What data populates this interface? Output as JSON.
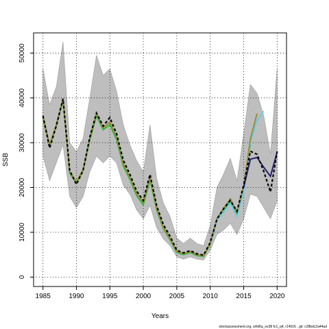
{
  "chart_data": {
    "type": "line",
    "xlabel": "Years",
    "ylabel": "SSB",
    "xlim": [
      1983.6,
      2021.4
    ],
    "ylim": [
      -2100,
      54500
    ],
    "xticks": [
      1985,
      1990,
      1995,
      2000,
      2005,
      2010,
      2015,
      2020
    ],
    "yticks": [
      0,
      10000,
      20000,
      30000,
      40000,
      50000
    ],
    "grid": true,
    "footnote": "stockassessment.org, whit6a_ov38 fc1_q4, r14016 , git: c28bdc2a44ad",
    "colors": {
      "band": "#bebebe",
      "band_edge": "#9a9a9a",
      "main": "#000000",
      "olive": "#9a8c3a",
      "green": "#2db83d",
      "cyan": "#6ccbe8",
      "navy": "#25206e",
      "grid": "#000000"
    },
    "band": {
      "x": [
        1985,
        1986,
        1987,
        1988,
        1989,
        1990,
        1991,
        1992,
        1993,
        1994,
        1995,
        1996,
        1997,
        1998,
        1999,
        2000,
        2001,
        2002,
        2003,
        2004,
        2005,
        2006,
        2007,
        2008,
        2009,
        2010,
        2011,
        2012,
        2013,
        2014,
        2015,
        2016,
        2017,
        2018,
        2019,
        2020
      ],
      "upper": [
        46500,
        38500,
        42500,
        52500,
        30000,
        28000,
        31000,
        40000,
        49500,
        45000,
        46500,
        41500,
        34000,
        29500,
        26000,
        23500,
        34000,
        22000,
        16500,
        13500,
        8700,
        7500,
        8700,
        7500,
        7000,
        11500,
        20000,
        23000,
        26500,
        21500,
        32000,
        43000,
        41000,
        36000,
        27500,
        46500
      ],
      "lower": [
        27000,
        21500,
        25500,
        29500,
        18000,
        15500,
        18000,
        23500,
        27000,
        25500,
        27000,
        25500,
        20500,
        18500,
        15000,
        13000,
        16000,
        11000,
        8500,
        7000,
        4500,
        4000,
        4500,
        4000,
        3800,
        6000,
        9500,
        10500,
        12000,
        9500,
        13000,
        18500,
        18000,
        15500,
        13000,
        17000
      ]
    },
    "series": [
      {
        "key": "green",
        "x": [
          1985,
          1986,
          1987,
          1988,
          1989,
          1990,
          1991,
          1992,
          1993,
          1994,
          1995,
          1996,
          1997,
          1998,
          1999,
          2000,
          2001,
          2002,
          2003,
          2004,
          2005,
          2006,
          2007,
          2008,
          2009,
          2010,
          2011,
          2012,
          2013,
          2014,
          2015,
          2016
        ],
        "values": [
          35500,
          29300,
          33700,
          39500,
          23200,
          21000,
          23800,
          30600,
          36000,
          32900,
          34000,
          30700,
          24800,
          21800,
          18200,
          16100,
          21700,
          15000,
          10800,
          8300,
          5500,
          5000,
          5500,
          4800,
          4600,
          7300,
          12700,
          14800,
          16900,
          13900,
          19700,
          29500
        ]
      },
      {
        "key": "cyan",
        "x": [
          2010,
          2011,
          2012,
          2013,
          2014,
          2015,
          2016,
          2017,
          2018
        ],
        "values": [
          7300,
          12600,
          14500,
          16500,
          13500,
          19000,
          30000,
          35000,
          37000
        ]
      },
      {
        "key": "olive",
        "x": [
          1985,
          1986,
          1987,
          1988,
          1989,
          1990,
          1991,
          1992,
          1993,
          1994,
          1995,
          1996,
          1997,
          1998,
          1999,
          2000,
          2001,
          2002,
          2003,
          2004,
          2005,
          2006,
          2007,
          2008,
          2009,
          2010,
          2011,
          2012,
          2013,
          2014,
          2015,
          2016,
          2017
        ],
        "values": [
          36000,
          29500,
          34000,
          39800,
          23500,
          21300,
          24000,
          31000,
          36500,
          33300,
          34600,
          31300,
          25300,
          22200,
          18700,
          16600,
          22300,
          15400,
          11100,
          8600,
          5700,
          5200,
          5700,
          5000,
          4700,
          7500,
          13100,
          15300,
          17500,
          14400,
          20300,
          30800,
          36500
        ]
      },
      {
        "key": "navy",
        "x": [
          2015,
          2016,
          2017,
          2018,
          2019,
          2020
        ],
        "values": [
          20000,
          26300,
          26700,
          24500,
          22500,
          27900
        ]
      },
      {
        "key": "main",
        "x": [
          1985,
          1986,
          1987,
          1988,
          1989,
          1990,
          1991,
          1992,
          1993,
          1994,
          1995,
          1996,
          1997,
          1998,
          1999,
          2000,
          2001,
          2002,
          2003,
          2004,
          2005,
          2006,
          2007,
          2008,
          2009,
          2010,
          2011,
          2012,
          2013,
          2014,
          2015,
          2016,
          2017,
          2018,
          2019,
          2020
        ],
        "values": [
          36000,
          28800,
          33800,
          39800,
          23800,
          20700,
          23800,
          31200,
          36600,
          33700,
          35600,
          32000,
          26100,
          22900,
          19200,
          17100,
          22900,
          15900,
          11700,
          9100,
          6000,
          5400,
          5900,
          5200,
          4900,
          7700,
          12900,
          15300,
          17100,
          14700,
          20500,
          28100,
          27400,
          23600,
          19000,
          28000
        ],
        "dashed": true
      }
    ]
  }
}
